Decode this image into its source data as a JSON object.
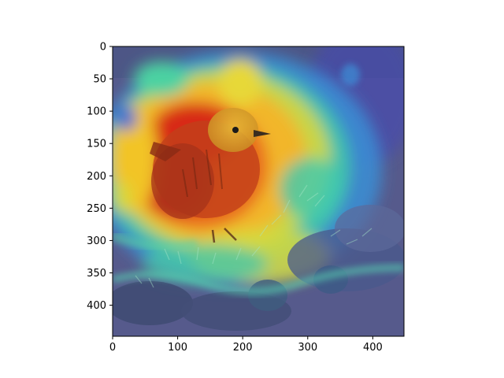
{
  "figure": {
    "image": {
      "subject": "bird-on-pine-branch",
      "overlay": "attention-heatmap-jet"
    },
    "x_axis": {
      "range": [
        0,
        448
      ],
      "ticks": [
        {
          "value": 0,
          "label": "0"
        },
        {
          "value": 100,
          "label": "100"
        },
        {
          "value": 200,
          "label": "200"
        },
        {
          "value": 300,
          "label": "300"
        },
        {
          "value": 400,
          "label": "400"
        }
      ]
    },
    "y_axis": {
      "range": [
        0,
        448
      ],
      "inverted": true,
      "ticks": [
        {
          "value": 0,
          "label": "0"
        },
        {
          "value": 50,
          "label": "50"
        },
        {
          "value": 100,
          "label": "100"
        },
        {
          "value": 150,
          "label": "150"
        },
        {
          "value": 200,
          "label": "200"
        },
        {
          "value": 250,
          "label": "250"
        },
        {
          "value": 300,
          "label": "300"
        },
        {
          "value": 350,
          "label": "350"
        },
        {
          "value": 400,
          "label": "400"
        }
      ]
    },
    "colors": {
      "hot": "#d61c10",
      "warm": "#f2a21c",
      "mid": "#d9d63a",
      "cool": "#46c6a6",
      "cold": "#4a58a6",
      "background": "#5a5f8e"
    }
  }
}
